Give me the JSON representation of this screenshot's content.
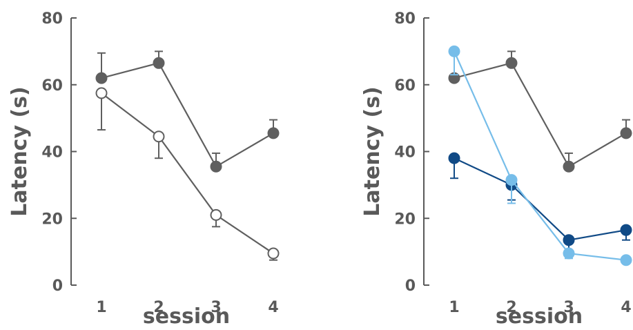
{
  "chart_data": [
    {
      "type": "line",
      "xlabel": "session",
      "ylabel": "Latency (s)",
      "ylim": [
        0,
        80
      ],
      "yticks": [
        0,
        20,
        40,
        60,
        80
      ],
      "x": [
        1,
        2,
        3,
        4
      ],
      "series": [
        {
          "values": [
            62,
            66.5,
            35.5,
            45.5
          ],
          "errors": [
            7.5,
            3.5,
            4,
            4
          ],
          "color": "#5f5f5f",
          "marker": "filled"
        },
        {
          "values": [
            57.5,
            44.5,
            21,
            9.5
          ],
          "errors": [
            11,
            6.5,
            3.5,
            2
          ],
          "color": "#5f5f5f",
          "marker": "open"
        }
      ]
    },
    {
      "type": "line",
      "xlabel": "session",
      "ylabel": "Latency (s)",
      "ylim": [
        0,
        80
      ],
      "yticks": [
        0,
        20,
        40,
        60,
        80
      ],
      "x": [
        1,
        2,
        3,
        4
      ],
      "series": [
        {
          "values": [
            62,
            66.5,
            35.5,
            45.5
          ],
          "errors": [
            7.5,
            3.5,
            4,
            4
          ],
          "color": "#5f5f5f",
          "marker": "filled"
        },
        {
          "values": [
            38,
            30,
            13.5,
            16.5
          ],
          "errors": [
            6,
            4.5,
            3,
            3
          ],
          "color": "#104a86",
          "marker": "filled"
        },
        {
          "values": [
            70,
            31.5,
            9.5,
            7.5
          ],
          "errors": [
            7,
            7,
            1.5,
            1
          ],
          "color": "#76bde9",
          "marker": "filled"
        }
      ]
    }
  ]
}
